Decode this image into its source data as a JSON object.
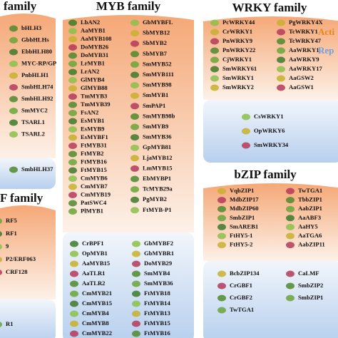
{
  "panels": [
    {
      "title": "family",
      "activators": [
        [
          "bHLH3",
          "GbbHLHs",
          "EbbHLH80",
          "MYC-RP/GP",
          "PnbHLH1",
          "SmbHLH74",
          "SmbHLH92",
          "SmMYC2",
          "TSARL1",
          "TSARL2"
        ]
      ],
      "repressors": [
        [
          "SmbHLH37"
        ]
      ]
    },
    {
      "title": "F family",
      "activators": [
        [
          "RF5",
          "RF1",
          "9",
          "P2/ERF063",
          "CRF128"
        ]
      ],
      "repressors": [
        [
          "R1"
        ]
      ]
    },
    {
      "title": "MYB family",
      "activators": [
        [
          "LbAN2",
          "AaMYB1",
          "AaMYB108",
          "DoMYB26",
          "DoMYB31",
          "LrMYB1",
          "LrAN2",
          "GlMYB4",
          "GlMYB88",
          "TmMYB3",
          "TmMYB39",
          "FsAN2",
          "EsMYB1",
          "EsMYB9",
          "EsMYBF1",
          "FtMYB31",
          "FtMYB2",
          "FtMYB16",
          "FtMYB15",
          "CmMYB6",
          "CmMYB7",
          "CmMYB19",
          "PatSWC4",
          "PlMYB1"
        ],
        [
          "GbMYBFL",
          "SbMYB12",
          "SbMYB2",
          "SbMYB7",
          "SmMYB52",
          "SmMYB111",
          "SmMYB98",
          "SmMYB1",
          "SmPAP1",
          "SmMYB98b",
          "SmMYB9",
          {
            "text": "SmMYB36",
            "color": "#e02020"
          },
          "GpMYB81",
          "LjaMYB12",
          "LmMYB15",
          "EbMYBP1",
          "TcMYB29a",
          "PgMYB2",
          "FtMYB-P1"
        ]
      ],
      "repressors": [
        [
          "CrBPF1",
          "OpMYB1",
          "AaMYB15",
          "AaTLR1",
          "AaTLR2",
          "CmMYB21",
          "CmMYB15",
          "CmMYB4",
          "CmMYB8",
          "CmMYB22"
        ],
        [
          "GbMYBF2",
          "GbMYBR1",
          "DoMYB29",
          "SmMYB4",
          {
            "text": "SmMYB36",
            "color": "#2a3fd0"
          },
          "FtMYB18",
          "FtMYB14",
          "FtMYB13",
          "FtMYB15",
          "FtMYB16"
        ]
      ]
    },
    {
      "title": "WRKY family",
      "activators": [
        [
          "PcWRKY44",
          "CrWRKY1",
          "PnWRKY9",
          "PnWRKY22",
          "CjWRKY1",
          "SmWRKY61",
          "SmWRKY1",
          "SmWRKY2"
        ],
        [
          "PgWRKY4X",
          "TcWRKY1",
          "TcWRKY47",
          "AaWRKY1",
          "AaWRKY9",
          "AaWRKY17",
          "AaGSW2",
          "AaGSW1"
        ]
      ],
      "repressors": [
        [
          "CsWRKY1",
          "OpWRKY6",
          "SmWRKY34"
        ]
      ]
    },
    {
      "title": "bZIP family",
      "activators": [
        [
          "VqbZIP1",
          "MdbZIP17",
          "MdbZIP60",
          {
            "text": "SmbZIP1",
            "color": "#e02020"
          },
          "SmAREB1",
          "FtHY5-1",
          "FtHY5-2"
        ],
        [
          {
            "text": "TwTGA1",
            "color": "#e02020"
          },
          "TbbZIP1",
          "AabZIP1",
          "AaABF3",
          "AaHY5",
          "AaTGA6",
          "AabZIP11"
        ]
      ],
      "repressors": [
        [
          "BcbZIP134",
          "CrGBF1",
          "CrGBF2",
          {
            "text": "TwTGA1",
            "color": "#2a3fd0"
          }
        ],
        [
          "CaLMF",
          "SmbZIP2",
          {
            "text": "SmbZIP1",
            "color": "#2a3fd0"
          }
        ]
      ]
    }
  ],
  "legend": [
    {
      "text": "Acti",
      "color": "#e8841c"
    },
    {
      "text": "Rep",
      "color": "#6f9fd8"
    }
  ]
}
